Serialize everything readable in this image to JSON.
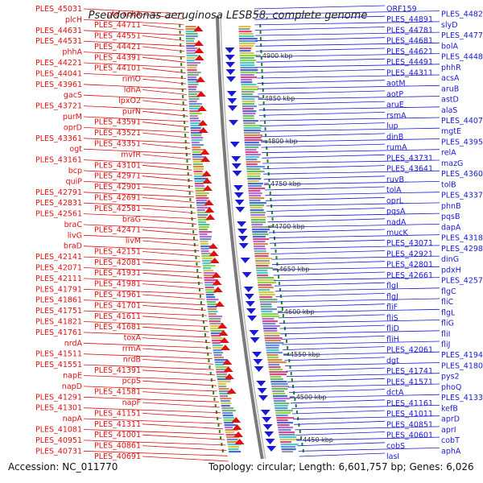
{
  "title": "Pseudomonas aeruginosa LESB58, complete genome",
  "footer": {
    "accession": "Accession: NC_011770",
    "summary": "Topology: circular; Length: 6,601,757 bp; Genes: 6,026"
  },
  "colors": {
    "left": "#e01010",
    "right": "#1a1ad6",
    "ring": "#7a7a7a",
    "dots": "#1a8a1a"
  },
  "scale_marks": [
    "4900 kbp",
    "4850 kbp",
    "4800 kbp",
    "4750 kbp",
    "4700 kbp",
    "4650 kbp",
    "4600 kbp",
    "4550 kbp",
    "4500 kbp",
    "4450 kbp"
  ],
  "left_labels": [
    "PLES_45031",
    "pta-ackA",
    "plcH",
    "PLES_44711",
    "PLES_44631",
    "PLES_44551",
    "PLES_44531",
    "PLES_44421",
    "phhA",
    "PLES_44391",
    "PLES_44221",
    "PLES_44101",
    "PLES_44041",
    "rimO",
    "PLES_43961",
    "ldhA",
    "gacS",
    "lpxO2",
    "PLES_43721",
    "purN",
    "purM",
    "PLES_43591",
    "oprD",
    "PLES_43521",
    "PLES_43361",
    "PLES_43351",
    "ogt",
    "mvfR",
    "PLES_43161",
    "PLES_43101",
    "bcp",
    "PLES_42971",
    "quiP",
    "PLES_42901",
    "PLES_42791",
    "PLES_42691",
    "PLES_42831",
    "PLES_42581",
    "PLES_42561",
    "braG",
    "braC",
    "PLES_42471",
    "livG",
    "livM",
    "braD",
    "PLES_42151",
    "PLES_42141",
    "PLES_42081",
    "PLES_42071",
    "PLES_41931",
    "PLES_42111",
    "PLES_41981",
    "PLES_41791",
    "PLES_41961",
    "PLES_41861",
    "PLES_41701",
    "PLES_41751",
    "PLES_41611",
    "PLES_41821",
    "PLES_41681",
    "PLES_41761",
    "toxA",
    "nrdA",
    "rrmA",
    "PLES_41511",
    "nrdB",
    "PLES_41551",
    "PLES_41391",
    "napE",
    "pcpS",
    "napD",
    "PLES_41581",
    "PLES_41291",
    "napF",
    "PLES_41301",
    "PLES_41151",
    "napA",
    "PLES_41311",
    "PLES_41081",
    "PLES_41001",
    "PLES_40951",
    "PLES_40861",
    "PLES_40731",
    "PLES_40691"
  ],
  "right_labels": [
    "ORF159",
    "PLES_44821",
    "PLES_44891",
    "slyD",
    "PLES_44781",
    "PLES_44771",
    "PLES_44681",
    "bolA",
    "PLES_44621",
    "PLES_44481",
    "PLES_44491",
    "phhR",
    "PLES_44311",
    "acsA",
    "aotM",
    "aruB",
    "aotP",
    "astD",
    "aruE",
    "alaS",
    "rsmA",
    "PLES_44071",
    "lup",
    "mgtE",
    "dinB",
    "PLES_43951",
    "rumA",
    "relA",
    "PLES_43731",
    "mazG",
    "PLES_43641",
    "PLES_43601",
    "ruvB",
    "tolB",
    "tolA",
    "PLES_43371",
    "oprL",
    "phnB",
    "pqsA",
    "pqsB",
    "nadA",
    "dapA",
    "mucK",
    "PLES_43181",
    "PLES_43071",
    "PLES_42981",
    "PLES_42921",
    "dinG",
    "PLES_42801",
    "pdxH",
    "PLES_42661",
    "PLES_42571",
    "flgI",
    "flgC",
    "flgJ",
    "fliC",
    "fliF",
    "flgL",
    "fliS",
    "fliG",
    "fliD",
    "fliI",
    "fliH",
    "fliJ",
    "PLES_42061",
    "PLES_41941",
    "dgt",
    "PLES_41801",
    "PLES_41741",
    "pys2",
    "PLES_41571",
    "phoQ",
    "dctA",
    "PLES_41331",
    "PLES_41161",
    "kefB",
    "PLES_41011",
    "aprD",
    "PLES_40851",
    "aprI",
    "PLES_40601",
    "cobT",
    "cobS",
    "aphA",
    "lasI"
  ]
}
